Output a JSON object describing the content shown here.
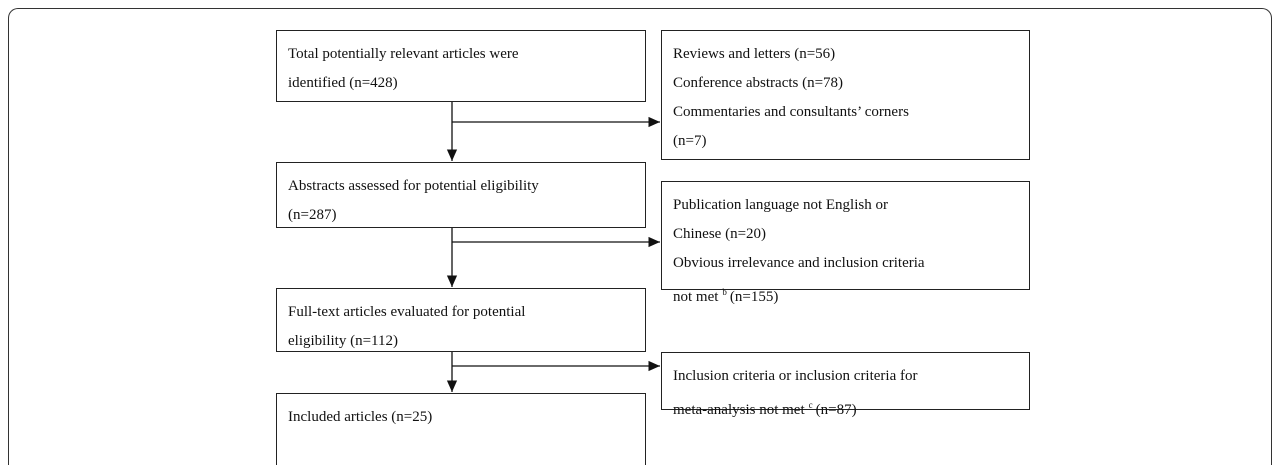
{
  "nodes": [
    {
      "lines": [
        "Total potentially relevant articles were",
        "identified (n=428)"
      ]
    },
    {
      "lines": [
        "Reviews and letters (n=56)",
        "Conference abstracts (n=78)",
        "Commentaries and consultants’ corners",
        "(n=7)"
      ]
    },
    {
      "lines": [
        "Abstracts assessed for potential eligibility",
        "(n=287)"
      ]
    },
    {
      "lines": [
        "Publication language not English or",
        "Chinese (n=20)",
        "Obvious irrelevance and inclusion criteria",
        {
          "text": "not met",
          "sup": "b",
          "rest": "(n=155)"
        }
      ]
    },
    {
      "lines": [
        "Full-text articles evaluated for potential",
        "eligibility (n=112)"
      ]
    },
    {
      "lines": [
        "Inclusion criteria or inclusion criteria for",
        {
          "text": "meta-analysis not met",
          "sup": "c",
          "rest": "(n=87)"
        }
      ]
    },
    {
      "lines": [
        "Included articles (n=25)"
      ]
    }
  ]
}
